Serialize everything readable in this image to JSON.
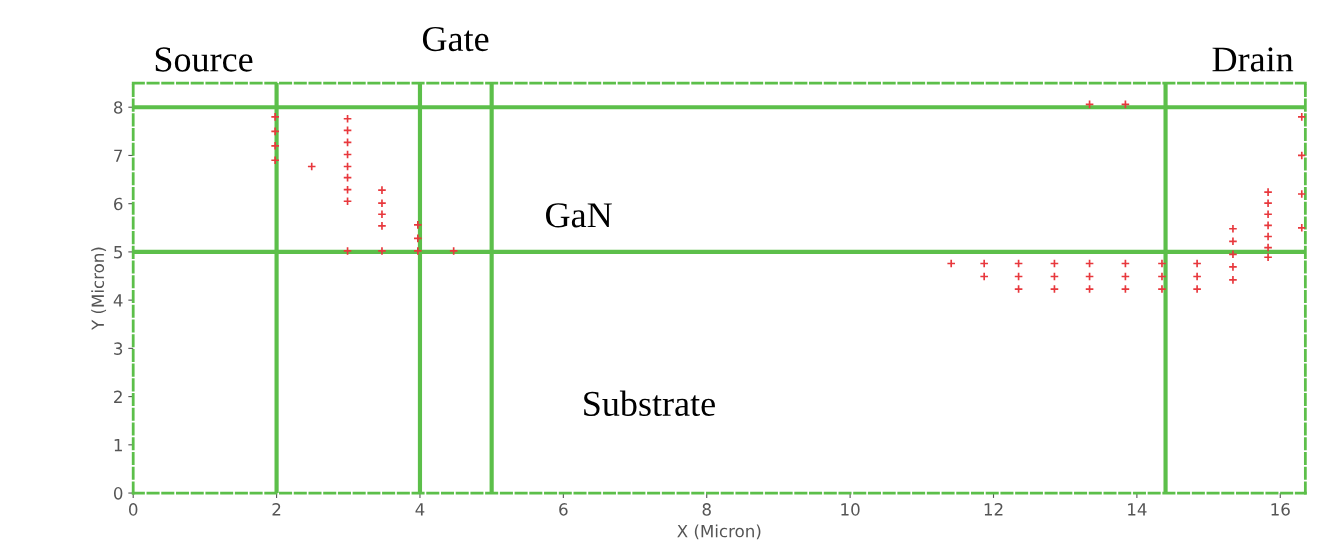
{
  "chart_data": {
    "type": "scatter",
    "xlabel": "X (Micron)",
    "ylabel": "Y (Micron)",
    "xlim": [
      0,
      16.35
    ],
    "ylim": [
      0,
      8.5
    ],
    "xticks": [
      0,
      2,
      4,
      6,
      8,
      10,
      12,
      14,
      16
    ],
    "yticks": [
      0,
      1,
      2,
      3,
      4,
      5,
      6,
      7,
      8
    ],
    "grid": false,
    "legend": false,
    "marker": "cross",
    "series": [
      {
        "color": "#e8383d",
        "x": [
          1.98,
          1.98,
          1.98,
          1.98,
          2.49,
          2.99,
          2.99,
          2.99,
          2.99,
          2.99,
          2.99,
          2.99,
          2.99,
          2.99,
          3.47,
          3.47,
          3.47,
          3.47,
          3.47,
          3.97,
          3.97,
          3.97,
          4.47,
          11.41,
          11.87,
          11.87,
          12.35,
          12.35,
          12.35,
          12.85,
          12.85,
          12.85,
          13.34,
          13.34,
          13.34,
          13.34,
          13.84,
          13.84,
          13.84,
          13.84,
          14.35,
          14.35,
          14.35,
          14.84,
          14.84,
          14.84,
          15.34,
          15.34,
          15.34,
          15.34,
          15.34,
          15.83,
          15.83,
          15.83,
          15.83,
          15.83,
          15.83,
          15.83,
          16.3,
          16.3,
          16.3,
          16.3
        ],
        "values": [
          7.8,
          7.5,
          7.2,
          6.9,
          6.77,
          7.76,
          7.52,
          7.27,
          7.02,
          6.77,
          6.54,
          6.29,
          6.05,
          5.02,
          6.28,
          6.01,
          5.78,
          5.54,
          5.02,
          5.56,
          5.28,
          5.02,
          5.02,
          4.76,
          4.76,
          4.49,
          4.76,
          4.49,
          4.23,
          4.76,
          4.49,
          4.23,
          4.76,
          4.49,
          4.23,
          8.06,
          4.76,
          4.49,
          4.23,
          8.06,
          4.76,
          4.49,
          4.23,
          4.76,
          4.49,
          4.23,
          5.48,
          5.22,
          4.95,
          4.69,
          4.42,
          6.24,
          6.01,
          5.78,
          5.55,
          5.32,
          5.09,
          4.89,
          7.8,
          7.0,
          6.2,
          5.5
        ]
      }
    ],
    "ref_lines": [
      {
        "axis": "x",
        "value": 2,
        "color": "#5cbf4a",
        "line_style": "solid"
      },
      {
        "axis": "x",
        "value": 4,
        "color": "#5cbf4a",
        "line_style": "solid"
      },
      {
        "axis": "x",
        "value": 5,
        "color": "#5cbf4a",
        "line_style": "solid"
      },
      {
        "axis": "x",
        "value": 14.4,
        "color": "#5cbf4a",
        "line_style": "solid"
      },
      {
        "axis": "y",
        "value": 5,
        "color": "#5cbf4a",
        "line_style": "solid"
      },
      {
        "axis": "y",
        "value": 8,
        "color": "#5cbf4a",
        "line_style": "solid"
      }
    ],
    "annotations": [
      "Source",
      "Gate",
      "Drain",
      "GaN",
      "Substrate"
    ]
  }
}
